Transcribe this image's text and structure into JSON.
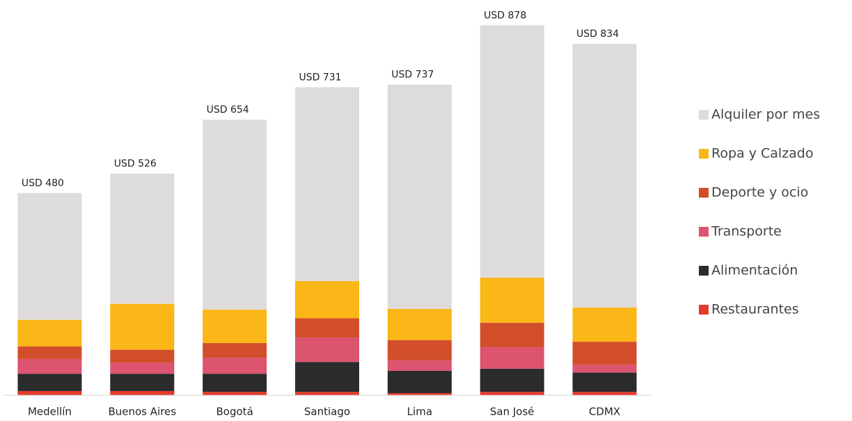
{
  "chart_data": {
    "type": "stacked_bar",
    "categories": [
      "Medellín",
      "Buenos Aires",
      "Bogotá",
      "Santiago",
      "Lima",
      "San José",
      "CDMX"
    ],
    "series": [
      {
        "name": "Restaurantes",
        "color": "#e53a2b",
        "values": [
          10,
          10,
          8,
          8,
          5,
          8,
          8
        ]
      },
      {
        "name": "Alimentación",
        "color": "#2b2b2b",
        "values": [
          41,
          41,
          43,
          71,
          53,
          55,
          46
        ]
      },
      {
        "name": "Transporte",
        "color": "#dc5470",
        "values": [
          35,
          26,
          38,
          58,
          25,
          51,
          18
        ]
      },
      {
        "name": "Deporte y ocio",
        "color": "#d24e2b",
        "values": [
          30,
          31,
          35,
          46,
          48,
          58,
          55
        ]
      },
      {
        "name": "Ropa y Calzado",
        "color": "#fbb617",
        "values": [
          63,
          109,
          79,
          88,
          74,
          107,
          81
        ]
      },
      {
        "name": "Alquiler por mes",
        "color": "#dedcdb",
        "values": [
          301,
          309,
          451,
          460,
          532,
          599,
          626
        ]
      }
    ],
    "totals": [
      480,
      526,
      654,
      731,
      737,
      878,
      834
    ],
    "total_labels": [
      "USD 480",
      "USD 526",
      "USD 654",
      "USD 731",
      "USD 737",
      "USD 878",
      "USD 834"
    ],
    "ylim": [
      0,
      900
    ]
  }
}
